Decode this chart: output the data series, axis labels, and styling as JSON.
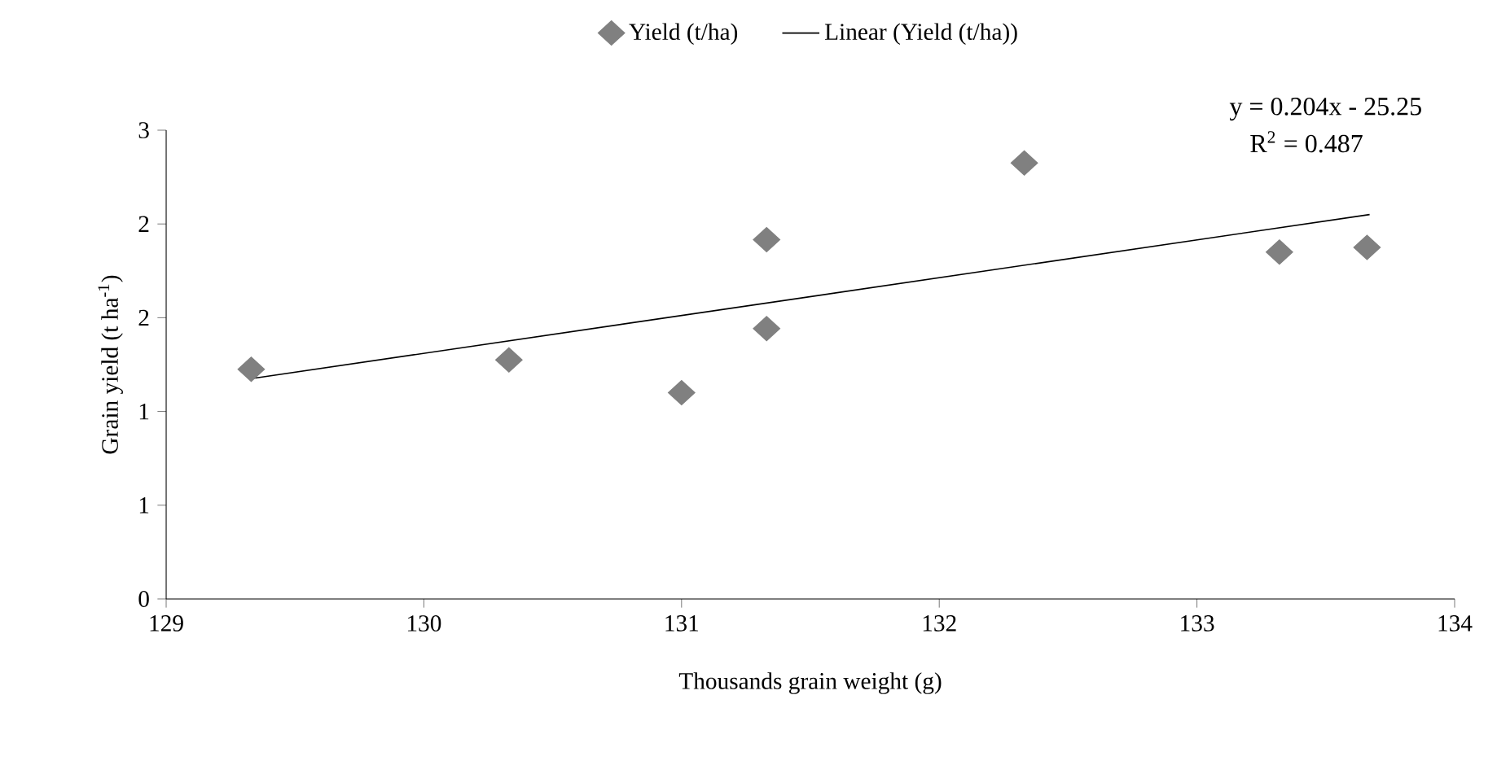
{
  "chart_data": {
    "type": "scatter",
    "xlabel": "Thousands grain weight (g)",
    "ylabel": "Grain yield (t ha$^{-1}$)",
    "xlim": [
      129,
      134
    ],
    "xticks": [
      129,
      130,
      131,
      132,
      133,
      134
    ],
    "ylim": [
      0,
      3
    ],
    "yticks": [
      0,
      {
        "value": 0.6,
        "label": "1"
      },
      {
        "value": 1.2,
        "label": "1"
      },
      {
        "value": 1.8,
        "label": "2"
      },
      {
        "value": 2.4,
        "label": "2"
      },
      3
    ],
    "legend": "top",
    "annotations": [
      "y = 0.204x - 25.25",
      "R$^{2}$ = 0.487"
    ],
    "series": [
      {
        "name": "Yield (t/ha)",
        "marker": "diamond",
        "color": "#808080",
        "x": [
          129.33,
          130.33,
          131.0,
          131.33,
          131.33,
          132.33,
          133.32,
          133.66
        ],
        "values": [
          1.47,
          1.53,
          1.32,
          2.3,
          1.73,
          2.79,
          2.22,
          2.25
        ]
      },
      {
        "name": "Linear (Yield (t/ha))",
        "type": "line",
        "marker": "none",
        "color": "#000000",
        "x": [
          129.33,
          133.67
        ],
        "values": [
          1.41,
          2.46
        ]
      }
    ]
  }
}
